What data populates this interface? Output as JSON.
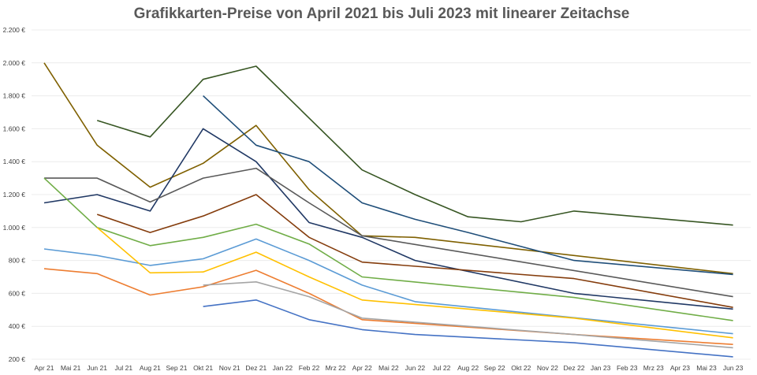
{
  "chart_data": {
    "type": "line",
    "title": "Grafikkarten-Preise von April 2021 bis Juli 2023 mit linearer Zeitachse",
    "xlabel": "",
    "ylabel": "",
    "ylim": [
      200,
      2200
    ],
    "yticks": [
      200,
      400,
      600,
      800,
      1000,
      1200,
      1400,
      1600,
      1800,
      2000,
      2200
    ],
    "ytick_labels": [
      "200 €",
      "400 €",
      "600 €",
      "800 €",
      "1.000 €",
      "1.200 €",
      "1.400 €",
      "1.600 €",
      "1.800 €",
      "2.000 €",
      "2.200 €"
    ],
    "categories": [
      "Apr 21",
      "Mai 21",
      "Jun 21",
      "Jul 21",
      "Aug 21",
      "Sep 21",
      "Okt 21",
      "Nov 21",
      "Dez 21",
      "Jan 22",
      "Feb 22",
      "Mrz 22",
      "Apr 22",
      "Mai 22",
      "Jun 22",
      "Jul 22",
      "Aug 22",
      "Sep 22",
      "Okt 22",
      "Nov 22",
      "Dez 22",
      "Jan 23",
      "Feb 23",
      "Mrz 23",
      "Apr 23",
      "Mai 23",
      "Jun 23"
    ],
    "grid": true,
    "legend": "none",
    "series": [
      {
        "color": "#375623",
        "points": [
          [
            2,
            1650
          ],
          [
            4,
            1550
          ],
          [
            6,
            1900
          ],
          [
            8,
            1980
          ],
          [
            12,
            1350
          ],
          [
            14,
            1200
          ],
          [
            16,
            1065
          ],
          [
            18,
            1035
          ],
          [
            20,
            1100
          ],
          [
            26,
            1015
          ]
        ]
      },
      {
        "color": "#7f6000",
        "points": [
          [
            0,
            2000
          ],
          [
            2,
            1500
          ],
          [
            4,
            1245
          ],
          [
            6,
            1390
          ],
          [
            8,
            1620
          ],
          [
            10,
            1230
          ],
          [
            12,
            950
          ],
          [
            14,
            940
          ],
          [
            26,
            720
          ]
        ]
      },
      {
        "color": "#1f4e79",
        "points": [
          [
            6,
            1800
          ],
          [
            8,
            1500
          ],
          [
            10,
            1400
          ],
          [
            12,
            1150
          ],
          [
            14,
            1050
          ],
          [
            16,
            970
          ],
          [
            20,
            800
          ],
          [
            26,
            715
          ]
        ]
      },
      {
        "color": "#203864",
        "points": [
          [
            0,
            1150
          ],
          [
            2,
            1200
          ],
          [
            4,
            1100
          ],
          [
            6,
            1600
          ],
          [
            8,
            1400
          ],
          [
            10,
            1030
          ],
          [
            12,
            940
          ],
          [
            14,
            800
          ],
          [
            20,
            600
          ],
          [
            26,
            505
          ]
        ]
      },
      {
        "color": "#595959",
        "points": [
          [
            0,
            1300
          ],
          [
            2,
            1300
          ],
          [
            4,
            1155
          ],
          [
            6,
            1300
          ],
          [
            8,
            1360
          ],
          [
            10,
            1150
          ],
          [
            12,
            950
          ],
          [
            26,
            580
          ]
        ]
      },
      {
        "color": "#843c0c",
        "points": [
          [
            2,
            1080
          ],
          [
            4,
            970
          ],
          [
            6,
            1070
          ],
          [
            8,
            1200
          ],
          [
            10,
            940
          ],
          [
            12,
            790
          ],
          [
            20,
            690
          ],
          [
            26,
            515
          ]
        ]
      },
      {
        "color": "#70ad47",
        "points": [
          [
            0,
            1300
          ],
          [
            2,
            1000
          ],
          [
            4,
            890
          ],
          [
            6,
            940
          ],
          [
            8,
            1020
          ],
          [
            10,
            900
          ],
          [
            12,
            700
          ],
          [
            20,
            575
          ],
          [
            26,
            435
          ]
        ]
      },
      {
        "color": "#5b9bd5",
        "points": [
          [
            0,
            870
          ],
          [
            2,
            830
          ],
          [
            4,
            770
          ],
          [
            6,
            810
          ],
          [
            8,
            930
          ],
          [
            10,
            800
          ],
          [
            12,
            650
          ],
          [
            14,
            550
          ],
          [
            26,
            355
          ]
        ]
      },
      {
        "color": "#ffc000",
        "points": [
          [
            2,
            1000
          ],
          [
            4,
            725
          ],
          [
            6,
            730
          ],
          [
            8,
            850
          ],
          [
            10,
            700
          ],
          [
            12,
            560
          ],
          [
            20,
            450
          ],
          [
            26,
            330
          ]
        ]
      },
      {
        "color": "#ed7d31",
        "points": [
          [
            0,
            750
          ],
          [
            2,
            720
          ],
          [
            4,
            590
          ],
          [
            6,
            640
          ],
          [
            8,
            740
          ],
          [
            10,
            600
          ],
          [
            12,
            440
          ],
          [
            20,
            350
          ],
          [
            26,
            290
          ]
        ]
      },
      {
        "color": "#a5a5a5",
        "points": [
          [
            6,
            650
          ],
          [
            8,
            670
          ],
          [
            10,
            580
          ],
          [
            12,
            450
          ],
          [
            20,
            350
          ],
          [
            26,
            270
          ]
        ]
      },
      {
        "color": "#4472c4",
        "points": [
          [
            6,
            520
          ],
          [
            8,
            560
          ],
          [
            10,
            440
          ],
          [
            12,
            380
          ],
          [
            14,
            350
          ],
          [
            20,
            300
          ],
          [
            26,
            215
          ]
        ]
      }
    ]
  }
}
